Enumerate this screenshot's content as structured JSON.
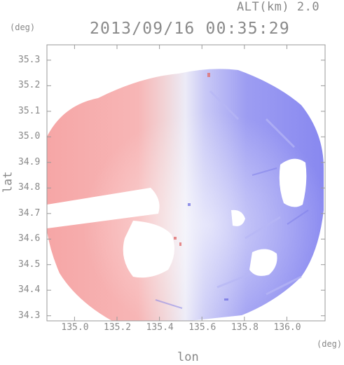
{
  "header": {
    "altitude_label": "ALT(km) 2.0",
    "timestamp": "2013/09/16 00:35:29"
  },
  "axes": {
    "x_label": "lon",
    "y_label": "lat",
    "x_unit": "(deg)",
    "y_unit": "(deg)",
    "x_ticks": [
      "135.0",
      "135.2",
      "135.4",
      "135.6",
      "135.8",
      "136.0"
    ],
    "y_ticks": [
      "35.3",
      "35.2",
      "35.1",
      "35.0",
      "34.9",
      "34.8",
      "34.7",
      "34.6",
      "34.5",
      "34.4",
      "34.3"
    ]
  },
  "map": {
    "type": "doppler-velocity-field",
    "x_range": [
      134.87,
      136.18
    ],
    "y_range": [
      34.28,
      35.36
    ],
    "colors": {
      "approaching_blue": "#8d8df2",
      "receding_red": "#f6aeae",
      "near_zero": "#f2f1f7",
      "frame": "#999999"
    }
  }
}
